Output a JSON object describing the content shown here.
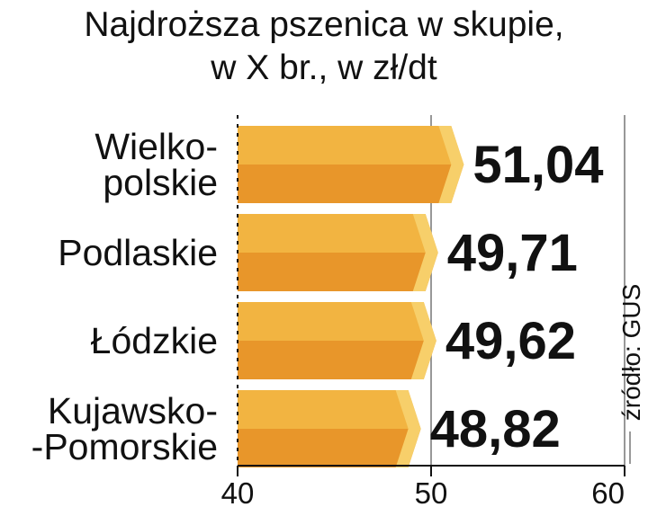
{
  "chart_data": {
    "type": "bar",
    "orientation": "horizontal",
    "title": "Najdroższa pszenica w skupie,",
    "subtitle": "w X br., w zł/dt",
    "categories": [
      [
        "Wielko-",
        "polskie"
      ],
      [
        "Podlaskie"
      ],
      [
        "Łódzkie"
      ],
      [
        "Kujawsko-",
        "-Pomorskie"
      ]
    ],
    "values": [
      51.04,
      49.71,
      49.62,
      48.82
    ],
    "value_labels": [
      "51,04",
      "49,71",
      "49,62",
      "48,82"
    ],
    "xlim": [
      40,
      60
    ],
    "xticks": [
      40,
      50,
      60
    ],
    "xtick_labels": [
      "40",
      "50",
      "60"
    ],
    "grid": true,
    "source": "źródło: GUS",
    "colors": {
      "bar_top": "#f2b441",
      "bar_bottom": "#e8962a",
      "bar_tip": "#f7cf6a",
      "text": "#111111",
      "grid": "#777777"
    }
  }
}
